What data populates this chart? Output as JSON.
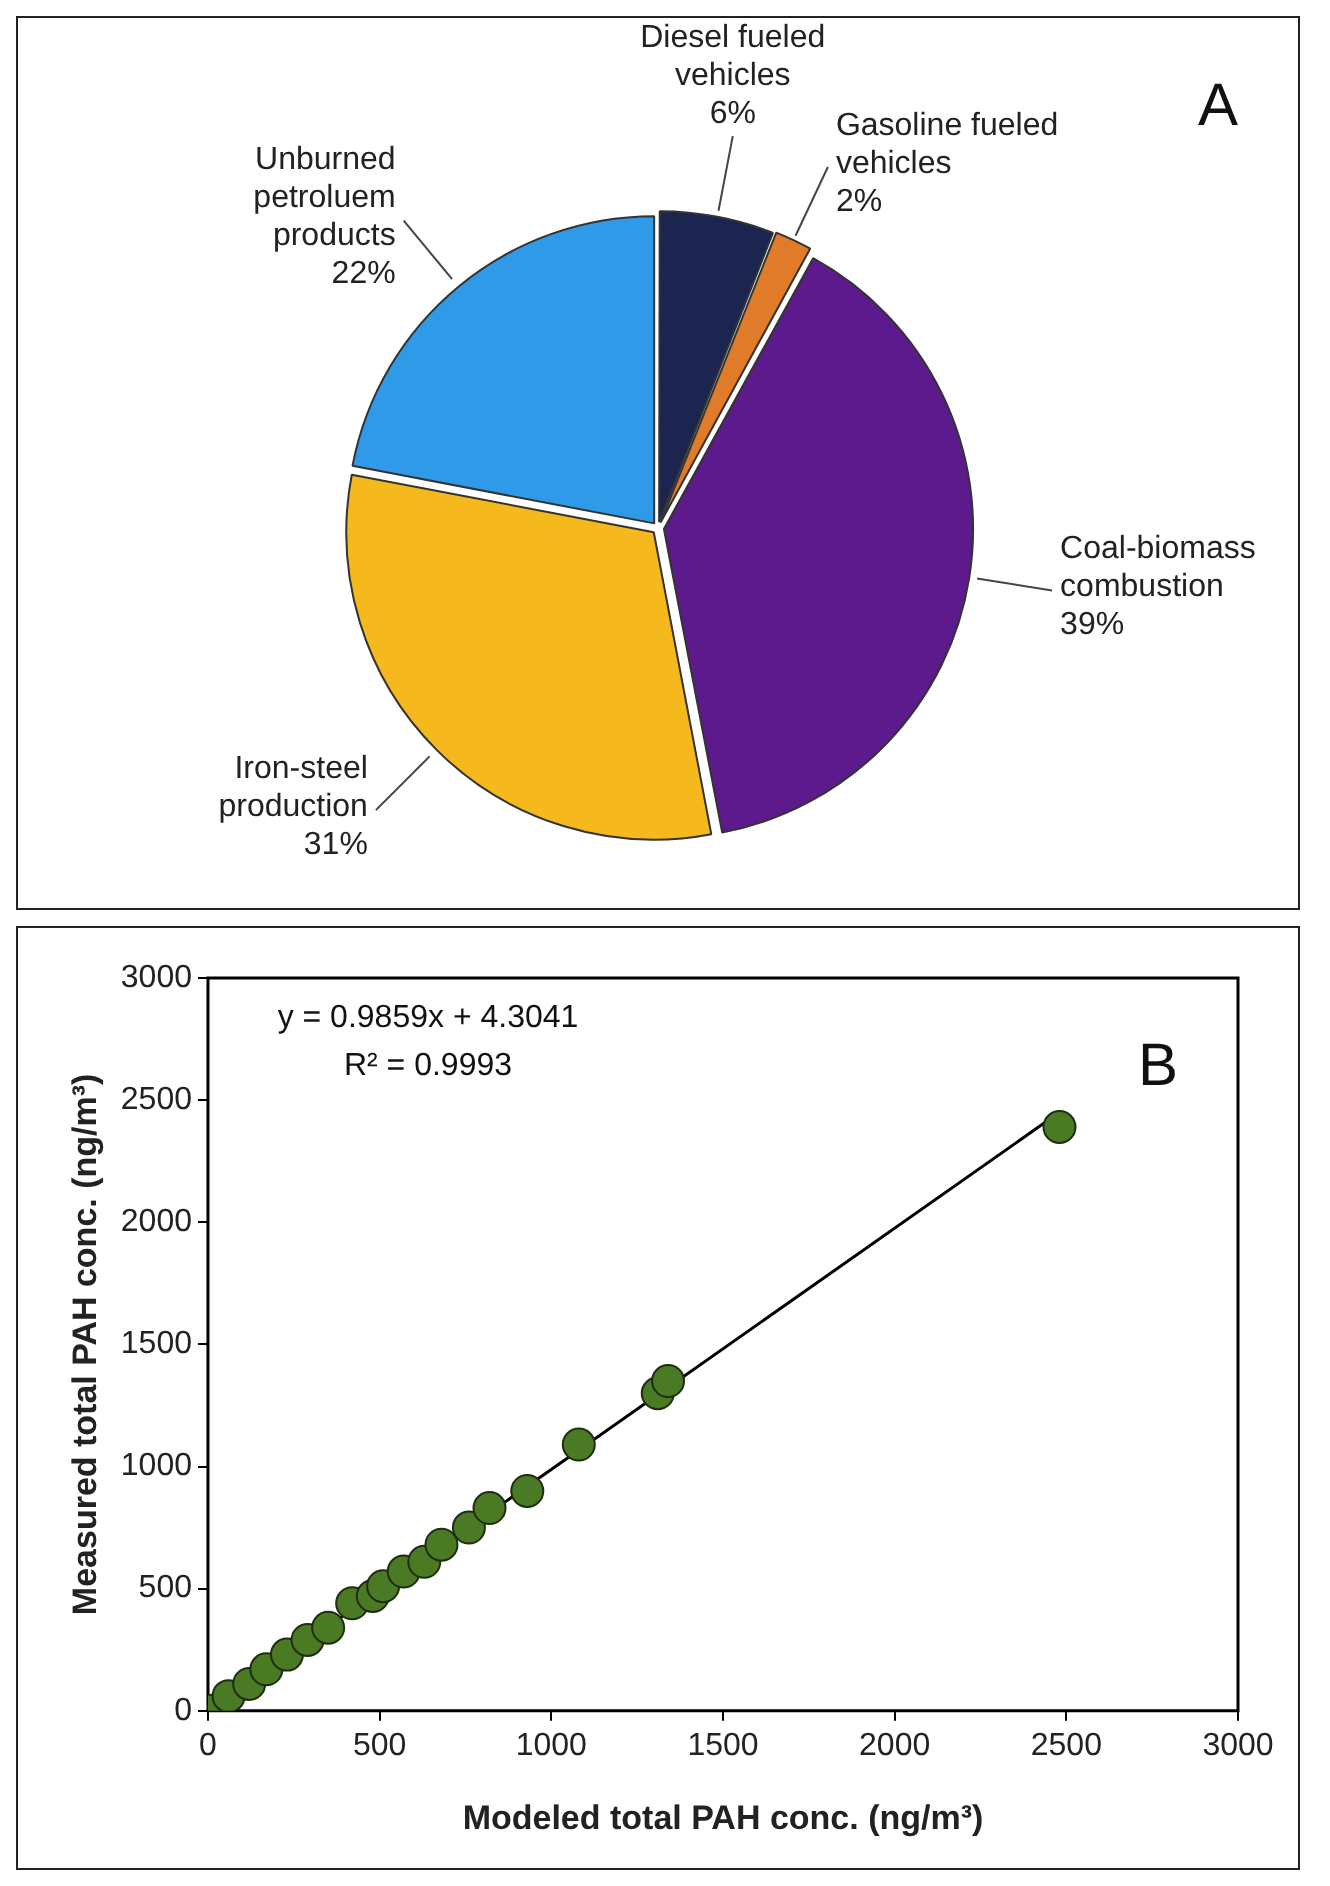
{
  "chart_data": [
    {
      "type": "pie",
      "annotations": [
        "A"
      ],
      "categories": [
        "Diesel fueled vehicles",
        "Gasoline fueled vehicles",
        "Coal-biomass combustion",
        "Iron-steel production",
        "Unburned petroluem products"
      ],
      "values": [
        6,
        2,
        39,
        31,
        22
      ],
      "value_labels": [
        "6%",
        "2%",
        "39%",
        "31%",
        "22%"
      ],
      "colors": [
        "#1b2550",
        "#e07b2a",
        "#5c1a8c",
        "#f5b91e",
        "#2f9be8"
      ]
    },
    {
      "type": "scatter",
      "xlabel": "Modeled total PAH conc. (ng/m³)",
      "ylabel": "Measured total PAH conc. (ng/m³)",
      "annotations": [
        "B",
        "y = 0.9859x + 4.3041",
        "R² = 0.9993"
      ],
      "xlim": [
        0,
        3000
      ],
      "ylim": [
        0,
        3000
      ],
      "xticks": [
        0,
        500,
        1000,
        1500,
        2000,
        2500,
        3000
      ],
      "yticks": [
        0,
        500,
        1000,
        1500,
        2000,
        2500,
        3000
      ],
      "grid": false,
      "legend": false,
      "marker": "circle",
      "series": [
        {
          "type": "scatter",
          "color": "#4a7a23",
          "x": [
            0,
            60,
            120,
            170,
            230,
            290,
            350,
            420,
            480,
            510,
            570,
            630,
            680,
            760,
            820,
            930,
            1080,
            1310,
            1340,
            2480
          ],
          "values": [
            0,
            60,
            110,
            170,
            230,
            290,
            340,
            440,
            470,
            510,
            570,
            610,
            680,
            750,
            830,
            900,
            1090,
            1300,
            1350,
            2390
          ]
        },
        {
          "type": "line",
          "color": "#000000",
          "line_style": "solid",
          "marker": "none",
          "x": [
            0,
            2480
          ],
          "values": [
            0,
            2450
          ]
        }
      ]
    }
  ]
}
